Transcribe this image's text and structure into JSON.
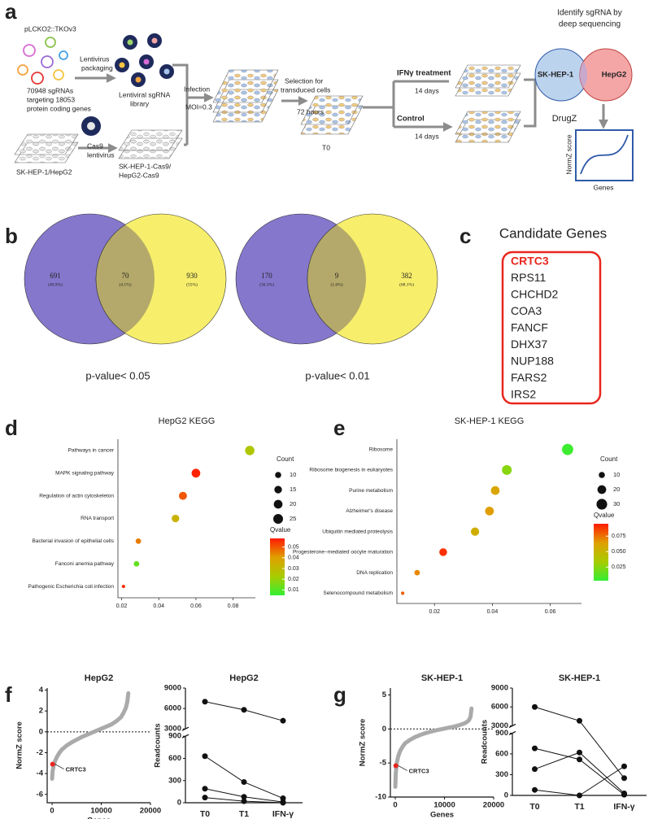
{
  "panel_labels": [
    "a",
    "b",
    "c",
    "d",
    "e",
    "f",
    "g"
  ],
  "diagram": {
    "vector": "pLCKO2::TKOv3",
    "packaging": [
      "Lentivirus",
      "packaging"
    ],
    "library_size": [
      "70948 sgRNAs",
      "targeting 18053",
      "protein coding genes"
    ],
    "library": [
      "Lentiviral sgRNA",
      "library"
    ],
    "cas9": [
      "Cas9",
      "lentivirus"
    ],
    "parental": "SK-HEP-1/HepG2",
    "cas9_cells": [
      "SK-HEP-1-Cas9/",
      "HepG2-Cas9"
    ],
    "infection": "Infection",
    "moi": "MOI=0.3",
    "selection": [
      "Selection for",
      "transduced cells"
    ],
    "duration": "72 hours",
    "t0": "T0",
    "treatment": "IFNγ treatment",
    "treatment_days": "14 days",
    "control": "Control",
    "control_days": "14 days",
    "sequencing": [
      "Identify sgRNA by",
      "deep sequencing"
    ],
    "venn_left": "SK-HEP-1",
    "venn_right": "HepG2",
    "method": "DrugZ",
    "plot_ylabel": "NormZ score",
    "plot_xlabel": "Genes"
  },
  "venn": [
    {
      "counts": [
        691,
        70,
        930
      ],
      "percents": [
        "(40.9%)",
        "(4.1%)",
        "(55%)"
      ],
      "caption": "p-value< 0.05"
    },
    {
      "counts": [
        170,
        9,
        382
      ],
      "percents": [
        "(30.3%)",
        "(1.6%)",
        "(68.1%)"
      ],
      "caption": "p-value< 0.01"
    }
  ],
  "candidates": {
    "title": "Candidate Genes",
    "genes": [
      "CRTC3",
      "RPS11",
      "CHCHD2",
      "COA3",
      "FANCF",
      "DHX37",
      "NUP188",
      "FARS2",
      "IRS2"
    ],
    "highlight_color": "#e8261e"
  },
  "chart_data": [
    {
      "type": "bubble",
      "title": "HepG2 KEGG",
      "categories": [
        "Pathways in cancer",
        "MAPK signaling pathway",
        "Regulation of actin cytoskeleton",
        "RNA transport",
        "Bacterial invasion of epithelial cells",
        "Fanconi anemia pathway",
        "Pathogenic Escherichia coli infection"
      ],
      "x": [
        0.089,
        0.06,
        0.053,
        0.049,
        0.029,
        0.028,
        0.021
      ],
      "sizes": [
        23,
        20,
        17,
        15,
        8,
        8,
        3
      ],
      "qvalues": [
        0.025,
        0.057,
        0.05,
        0.033,
        0.045,
        0.012,
        0.056
      ],
      "xlim": [
        0.018,
        0.092
      ],
      "xticks": [
        0.02,
        0.04,
        0.06,
        0.08
      ],
      "size_legend_title": "Count",
      "size_ticks": [
        10,
        15,
        20,
        25
      ],
      "color_legend_title": "Qvalue",
      "qlim": [
        0.005,
        0.058
      ],
      "qticks": [
        0.05,
        0.04,
        0.03,
        0.02,
        0.01
      ],
      "colorscale": [
        "#33ee33",
        "#a8cc00",
        "#e0a000",
        "#ff1a00"
      ]
    },
    {
      "type": "bubble",
      "title": "SK-HEP-1 KEGG",
      "categories": [
        "Ribosome",
        "Ribosome biogenesis in eukaryotes",
        "Purine metabolism",
        "Alzheimer's disease",
        "Ubiquitin mediated proteolysis",
        "Progesterone−mediated oocyte maturation",
        "DNA replication",
        "Selenocompound metabolism"
      ],
      "x": [
        0.066,
        0.045,
        0.041,
        0.039,
        0.034,
        0.023,
        0.014,
        0.009
      ],
      "sizes": [
        33,
        25,
        20,
        20,
        18,
        16,
        8,
        3
      ],
      "qvalues": [
        0.005,
        0.025,
        0.06,
        0.065,
        0.055,
        0.09,
        0.07,
        0.08
      ],
      "xlim": [
        0.007,
        0.0708
      ],
      "xticks": [
        0.02,
        0.04,
        0.06
      ],
      "size_legend_title": "Count",
      "size_ticks": [
        10,
        20,
        30
      ],
      "color_legend_title": "Qvalue",
      "qlim": [
        0.003,
        0.095
      ],
      "qticks": [
        0.075,
        {
          "value": 0.05,
          "label": "0.050"
        },
        0.025
      ],
      "colorscale": [
        "#33ee33",
        "#a8cc00",
        "#e0a000",
        "#ff1a00"
      ]
    },
    {
      "type": "line",
      "title": "HepG2",
      "xlabel": "Genes",
      "ylabel": "NormZ score",
      "x": [
        0,
        100,
        300,
        600,
        1000,
        1500,
        2000,
        3000,
        4000,
        5000,
        6000,
        7000,
        8000,
        9000,
        10000,
        11000,
        12000,
        13000,
        14000,
        14500,
        15000,
        15300,
        15500
      ],
      "series": [
        {
          "color": "#aaaaaa",
          "values": [
            -4.5,
            -3.8,
            -3.3,
            -2.8,
            -2.4,
            -2.0,
            -1.7,
            -1.3,
            -1.0,
            -0.75,
            -0.5,
            -0.3,
            -0.1,
            0.1,
            0.3,
            0.5,
            0.7,
            1.0,
            1.4,
            1.8,
            2.3,
            2.9,
            3.7
          ]
        }
      ],
      "highlight": {
        "label": "CRTC3",
        "x": 100,
        "y": -3.1,
        "color": "#e8261e"
      },
      "hline": 0,
      "xlim": [
        -1000,
        20000
      ],
      "xticks": [
        0,
        10000,
        20000
      ],
      "ylim": [
        -6.8,
        4.2
      ],
      "yticks": [
        4,
        2,
        0,
        -2,
        -4,
        -6
      ]
    },
    {
      "type": "line",
      "title": "HepG2",
      "ylabel": "Readcounts",
      "categories": [
        "T0",
        "T1",
        "IFN-γ"
      ],
      "series": [
        {
          "color": "#111111",
          "values": [
            7000,
            5800,
            4200
          ]
        },
        {
          "color": "#111111",
          "values": [
            630,
            280,
            60
          ]
        },
        {
          "color": "#111111",
          "values": [
            190,
            80,
            10
          ]
        },
        {
          "color": "#111111",
          "values": [
            70,
            20,
            0
          ]
        }
      ],
      "ylim": [
        0,
        9000
      ],
      "ybreak": [
        900,
        3000
      ],
      "yticks": [
        0,
        300,
        600,
        900,
        3000,
        6000,
        9000
      ]
    },
    {
      "type": "line",
      "title": "SK-HEP-1",
      "xlabel": "Genes",
      "ylabel": "NormZ score",
      "x": [
        0,
        100,
        300,
        600,
        1000,
        1500,
        2000,
        3000,
        4000,
        5000,
        6000,
        7000,
        8000,
        9000,
        10000,
        11000,
        12000,
        13000,
        14000,
        14500,
        15000,
        15300,
        15500
      ],
      "series": [
        {
          "color": "#aaaaaa",
          "values": [
            -8.5,
            -6.5,
            -5.0,
            -4.0,
            -3.2,
            -2.6,
            -2.1,
            -1.6,
            -1.2,
            -0.9,
            -0.65,
            -0.45,
            -0.25,
            -0.1,
            0.05,
            0.2,
            0.35,
            0.55,
            0.8,
            1.0,
            1.3,
            1.8,
            3.0
          ]
        }
      ],
      "highlight": {
        "label": "CRTC3",
        "x": 100,
        "y": -5.4,
        "color": "#e8261e"
      },
      "hline": 0,
      "xlim": [
        -1000,
        20000
      ],
      "xticks": [
        0,
        10000,
        20000
      ],
      "ylim": [
        -10,
        6
      ],
      "yticks": [
        5,
        0,
        -5,
        -10
      ]
    },
    {
      "type": "line",
      "title": "SK-HEP-1",
      "ylabel": "Readcounts",
      "categories": [
        "T0",
        "T1",
        "IFN-γ"
      ],
      "series": [
        {
          "color": "#111111",
          "values": [
            6000,
            3800,
            250
          ]
        },
        {
          "color": "#111111",
          "values": [
            680,
            520,
            10
          ]
        },
        {
          "color": "#111111",
          "values": [
            380,
            620,
            30
          ]
        },
        {
          "color": "#111111",
          "values": [
            80,
            0,
            420
          ]
        }
      ],
      "ylim": [
        0,
        9000
      ],
      "ybreak": [
        900,
        3000
      ],
      "yticks": [
        0,
        300,
        600,
        900,
        3000,
        6000,
        9000
      ]
    }
  ]
}
